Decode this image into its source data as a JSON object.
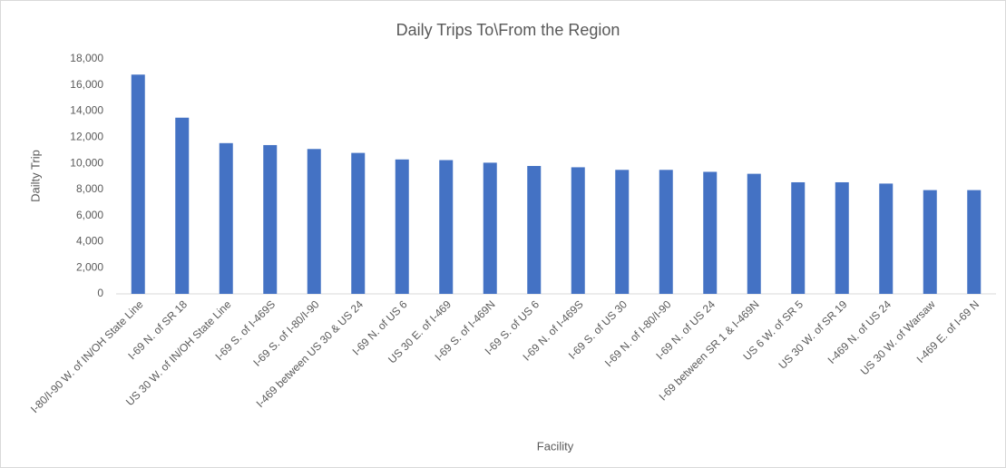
{
  "chart_data": {
    "type": "bar",
    "title": "Daily Trips To\\From the Region",
    "x_label": "Facility",
    "y_label": "Dailty Trip",
    "categories": [
      "I-80/I-90 W. of IN/OH State Line",
      "I-69 N. of SR 18",
      "US 30 W. of IN/OH State Line",
      "I-69 S. of I-469S",
      "I-69 S. of I-80/I-90",
      "I-469 between US 30 & US 24",
      "I-69 N. of US 6",
      "US 30 E. of I-469",
      "I-69 S. of I-469N",
      "I-69 S. of US 6",
      "I-69 N. of I-469S",
      "I-69 S. of US 30",
      "I-69 N. of I-80/I-90",
      "I-69 N. of US 24",
      "I-69 between SR 1 & I-469N",
      "US 6 W. of SR 5",
      "US 30 W. of SR 19",
      "I-469 N. of US 24",
      "US 30 W. of Warsaw",
      "I-469 E. of I-69 N"
    ],
    "values": [
      16800,
      13500,
      11550,
      11400,
      11100,
      10800,
      10300,
      10250,
      10050,
      9800,
      9700,
      9500,
      9500,
      9350,
      9200,
      8550,
      8550,
      8450,
      7950,
      7950
    ],
    "color": "#4472c4",
    "ylim": [
      0,
      18000
    ],
    "yticks": [
      0,
      {
        "value": 2000,
        "label": "2,000"
      },
      {
        "value": 4000,
        "label": "4,000"
      },
      {
        "value": 6000,
        "label": "6,000"
      },
      {
        "value": 8000,
        "label": "8,000"
      },
      {
        "value": 10000,
        "label": "10,000"
      },
      {
        "value": 12000,
        "label": "12,000"
      },
      {
        "value": 14000,
        "label": "14,000"
      },
      {
        "value": 16000,
        "label": "16,000"
      },
      {
        "value": 18000,
        "label": "18,000"
      }
    ],
    "grid": false
  }
}
